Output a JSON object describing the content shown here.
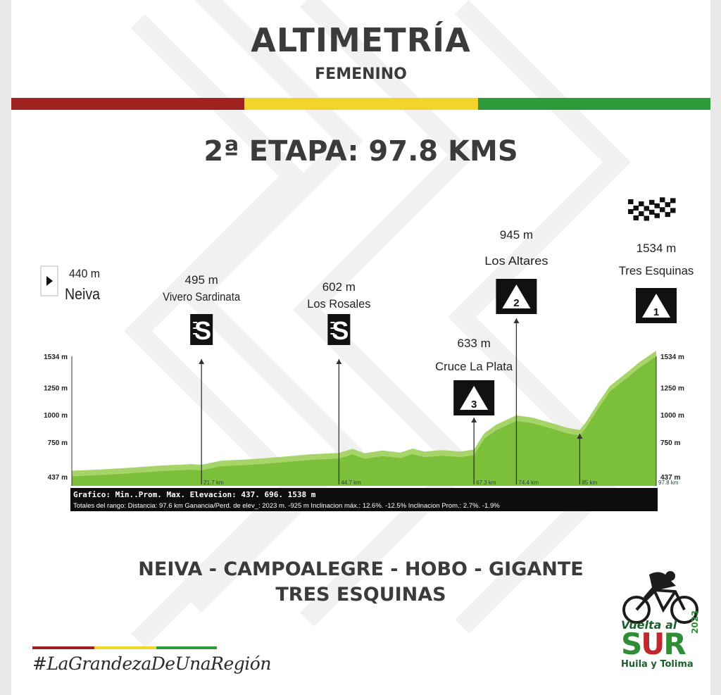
{
  "header": {
    "title": "ALTIMETRÍA",
    "subtitle": "FEMENINO",
    "stage": "2ª ETAPA: 97.8 KMS",
    "colors": {
      "red": "#9e2220",
      "yellow": "#f2d42b",
      "green": "#2f9a3a",
      "text": "#3b3b3b"
    }
  },
  "chart_data": {
    "type": "area",
    "xlim": [
      0,
      97.8
    ],
    "ylim": [
      437,
      1534
    ],
    "y_ticks": [
      "1534 m",
      "1250 m",
      "1000 m",
      "750 m",
      "437 m"
    ],
    "y_tick_values": [
      1534,
      1250,
      1000,
      750,
      437
    ],
    "profile": [
      {
        "km": 0,
        "elev": 440
      },
      {
        "km": 5,
        "elev": 452
      },
      {
        "km": 10,
        "elev": 468
      },
      {
        "km": 15,
        "elev": 488
      },
      {
        "km": 20,
        "elev": 500
      },
      {
        "km": 21.7,
        "elev": 495
      },
      {
        "km": 25,
        "elev": 532
      },
      {
        "km": 30,
        "elev": 545
      },
      {
        "km": 35,
        "elev": 566
      },
      {
        "km": 40,
        "elev": 590
      },
      {
        "km": 44.7,
        "elev": 602
      },
      {
        "km": 47,
        "elev": 640
      },
      {
        "km": 49,
        "elev": 600
      },
      {
        "km": 52,
        "elev": 625
      },
      {
        "km": 55,
        "elev": 605
      },
      {
        "km": 57,
        "elev": 642
      },
      {
        "km": 59,
        "elev": 615
      },
      {
        "km": 62,
        "elev": 628
      },
      {
        "km": 65,
        "elev": 615
      },
      {
        "km": 67.3,
        "elev": 633
      },
      {
        "km": 69,
        "elev": 780
      },
      {
        "km": 71,
        "elev": 860
      },
      {
        "km": 73,
        "elev": 910
      },
      {
        "km": 74.4,
        "elev": 945
      },
      {
        "km": 77,
        "elev": 925
      },
      {
        "km": 80,
        "elev": 880
      },
      {
        "km": 83,
        "elev": 830
      },
      {
        "km": 85,
        "elev": 812
      },
      {
        "km": 86,
        "elev": 880
      },
      {
        "km": 88,
        "elev": 1050
      },
      {
        "km": 90,
        "elev": 1210
      },
      {
        "km": 93,
        "elev": 1340
      },
      {
        "km": 95,
        "elev": 1430
      },
      {
        "km": 97.8,
        "elev": 1534
      }
    ],
    "km_labels": [
      {
        "km": 21.7,
        "label": "21.7 km"
      },
      {
        "km": 44.7,
        "label": "44.7 km"
      },
      {
        "km": 67.3,
        "label": "67.3 km"
      },
      {
        "km": 74.4,
        "label": "74.4 km"
      },
      {
        "km": 85,
        "label": "85 km"
      },
      {
        "km": 97.8,
        "label": "97.8 km"
      }
    ],
    "points": [
      {
        "km": 0,
        "elevation": "440 m",
        "name": "Neiva",
        "type": "start"
      },
      {
        "km": 21.7,
        "elevation": "495 m",
        "name": "Vivero Sardinata",
        "type": "sprint",
        "symbol": "S"
      },
      {
        "km": 44.7,
        "elevation": "602 m",
        "name": "Los Rosales",
        "type": "sprint",
        "symbol": "S"
      },
      {
        "km": 67.3,
        "elevation": "633 m",
        "name": "Cruce La Plata",
        "type": "climb",
        "symbol": "3"
      },
      {
        "km": 74.4,
        "elevation": "945 m",
        "name": "Los Altares",
        "type": "climb",
        "symbol": "2"
      },
      {
        "km": 97.8,
        "elevation": "1534 m",
        "name": "Tres Esquinas",
        "type": "climb",
        "symbol": "1"
      }
    ],
    "extra_arrow_km": 85,
    "info_line1": "Grafico: Min..Prom. Max. Elevacion: 437. 696. 1538 m",
    "info_line2": "Totales del rango: Distancia: 97.6 km    Ganancia/Perd. de elev_: 2023 m.  -925 m    Inclinacion máx.: 12.6%. -12.5%     Inclinacion Prom.: 2.7%. -1.9%",
    "fill_color": "#7cbf3a",
    "fill_light": "#a6d468"
  },
  "route": {
    "line1": "NEIVA - CAMPOALEGRE - HOBO - GIGANTE",
    "line2": "TRES ESQUINAS"
  },
  "footer": {
    "hashtag": "#LaGrandezaDeUnaRegión",
    "logo_line1": "Vuelta al",
    "logo_line2a": "S",
    "logo_line2b": "U",
    "logo_line2c": "R",
    "logo_year": "2023",
    "logo_line3": "Huila y Tolima"
  }
}
